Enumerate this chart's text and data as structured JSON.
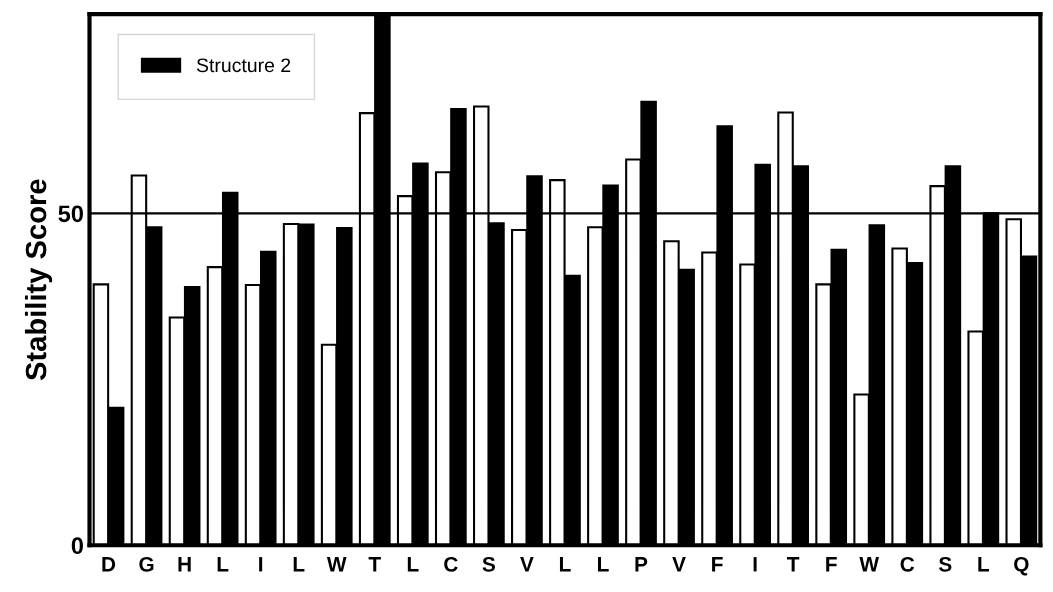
{
  "chart_data": {
    "type": "bar",
    "ylabel": "Stability Score",
    "categories": [
      "D",
      "G",
      "H",
      "L",
      "I",
      "L",
      "W",
      "T",
      "L",
      "C",
      "S",
      "V",
      "L",
      "L",
      "P",
      "V",
      "F",
      "I",
      "T",
      "F",
      "W",
      "C",
      "S",
      "L",
      "Q"
    ],
    "series": [
      {
        "color": "#ffffff",
        "values": [
          39.3,
          55.7,
          34.3,
          41.9,
          39.2,
          48.4,
          30.2,
          65.1,
          52.6,
          56.2,
          66.1,
          47.5,
          55.0,
          47.9,
          58.1,
          45.8,
          44.1,
          42.3,
          65.2,
          39.3,
          22.7,
          44.7,
          54.1,
          32.2,
          49.1
        ]
      },
      {
        "name": "Structure 2",
        "color": "#000000",
        "values": [
          20.7,
          47.9,
          38.9,
          53.1,
          44.2,
          48.3,
          47.8,
          80,
          57.5,
          65.7,
          48.5,
          55.6,
          40.6,
          54.2,
          66.8,
          41.5,
          63.1,
          57.3,
          57.1,
          44.5,
          48.2,
          42.5,
          57.1,
          50.0,
          43.5
        ]
      }
    ],
    "ylim": [
      0,
      80
    ],
    "yticks": [
      0,
      50
    ],
    "ref_lines": [
      {
        "axis": "y",
        "value": 50,
        "color": "#000000"
      }
    ],
    "legend": "top left",
    "grid": false
  }
}
